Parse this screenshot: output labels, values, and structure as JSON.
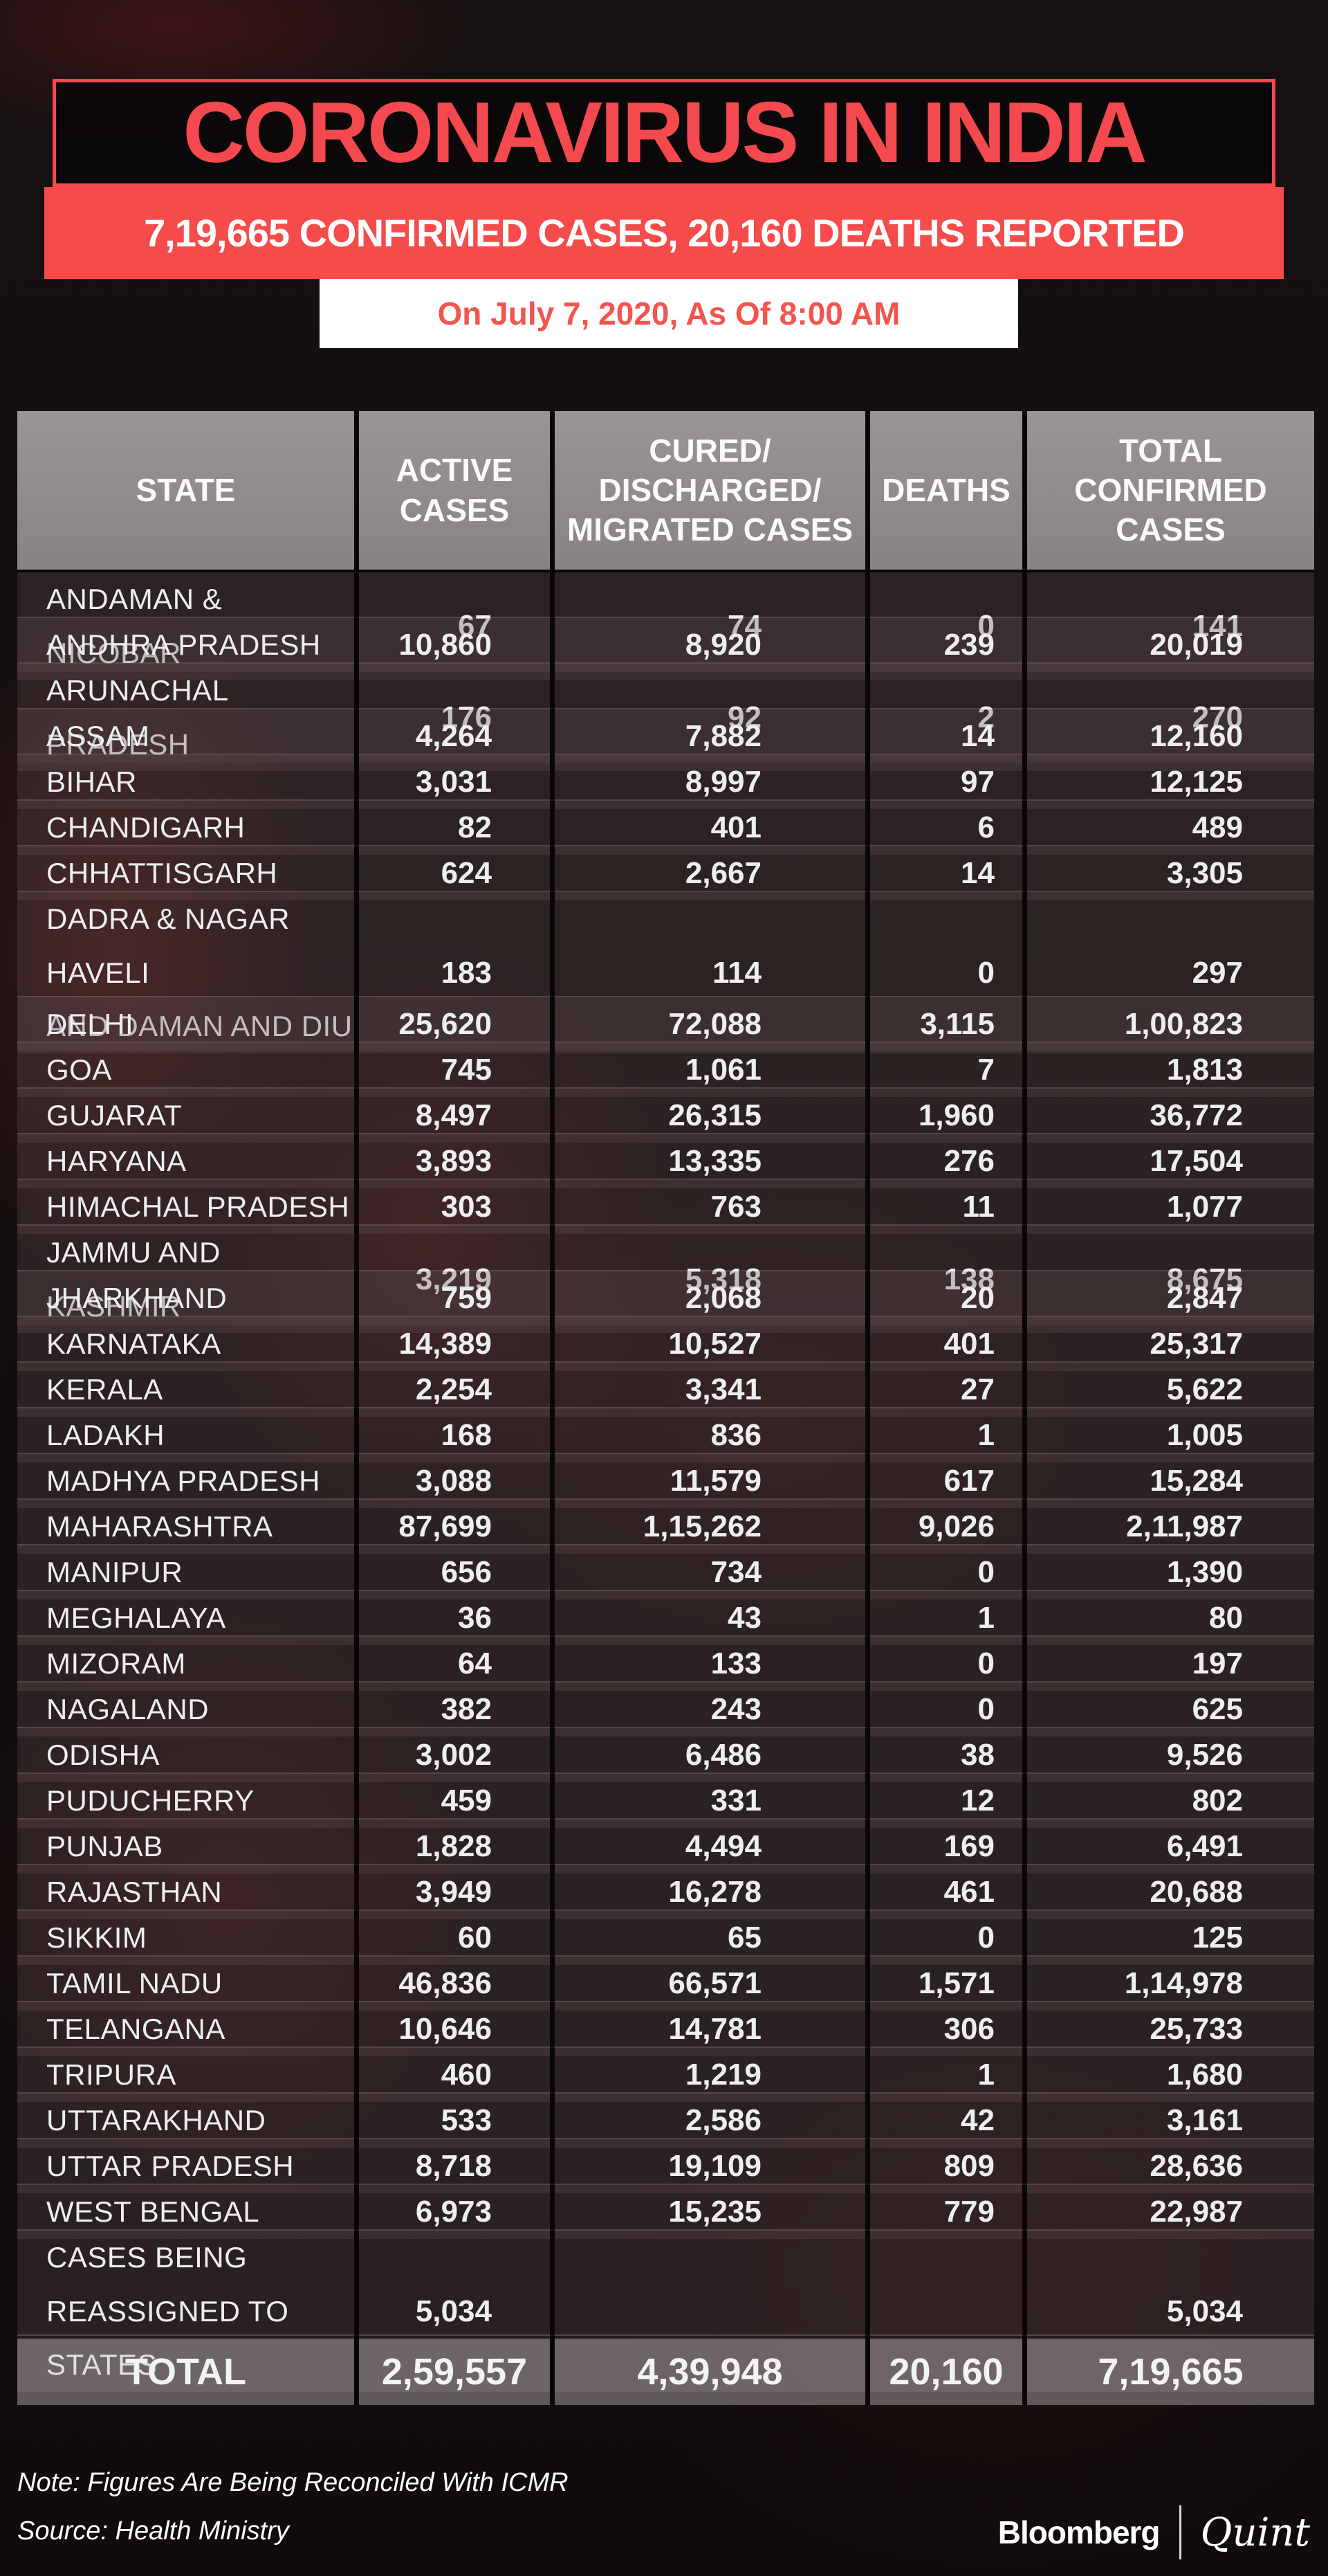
{
  "title": "CORONAVIRUS IN INDIA",
  "subtitle": "7,19,665 CONFIRMED CASES, 20,160 DEATHS REPORTED",
  "date_line": "On July 7, 2020, As Of 8:00 AM",
  "table": {
    "headers": [
      "STATE",
      "ACTIVE\nCASES",
      "CURED/\nDISCHARGED/\nMIGRATED CASES",
      "DEATHS",
      "TOTAL\nCONFIRMED\nCASES"
    ]
  },
  "chart_data": {
    "type": "table",
    "title": "CORONAVIRUS IN INDIA",
    "subtitle": "7,19,665 CONFIRMED CASES, 20,160 DEATHS REPORTED",
    "as_of": "On July 7, 2020, As Of 8:00 AM",
    "columns": [
      "STATE",
      "ACTIVE CASES",
      "CURED/DISCHARGED/MIGRATED CASES",
      "DEATHS",
      "TOTAL CONFIRMED CASES"
    ],
    "rows": [
      [
        "ANDAMAN & NICOBAR",
        "67",
        "74",
        "0",
        "141"
      ],
      [
        "ANDHRA PRADESH",
        "10,860",
        "8,920",
        "239",
        "20,019"
      ],
      [
        "ARUNACHAL PRADESH",
        "176",
        "92",
        "2",
        "270"
      ],
      [
        "ASSAM",
        "4,264",
        "7,882",
        "14",
        "12,160"
      ],
      [
        "BIHAR",
        "3,031",
        "8,997",
        "97",
        "12,125"
      ],
      [
        "CHANDIGARH",
        "82",
        "401",
        "6",
        "489"
      ],
      [
        "CHHATTISGARH",
        "624",
        "2,667",
        "14",
        "3,305"
      ],
      [
        "DADRA & NAGAR HAVELI\nAND DAMAN AND DIU",
        "183",
        "114",
        "0",
        "297"
      ],
      [
        "DELHI",
        "25,620",
        "72,088",
        "3,115",
        "1,00,823"
      ],
      [
        "GOA",
        "745",
        "1,061",
        "7",
        "1,813"
      ],
      [
        "GUJARAT",
        "8,497",
        "26,315",
        "1,960",
        "36,772"
      ],
      [
        "HARYANA",
        "3,893",
        "13,335",
        "276",
        "17,504"
      ],
      [
        "HIMACHAL PRADESH",
        "303",
        "763",
        "11",
        "1,077"
      ],
      [
        "JAMMU AND KASHMIR",
        "3,219",
        "5,318",
        "138",
        "8,675"
      ],
      [
        "JHARKHAND",
        "759",
        "2,068",
        "20",
        "2,847"
      ],
      [
        "KARNATAKA",
        "14,389",
        "10,527",
        "401",
        "25,317"
      ],
      [
        "KERALA",
        "2,254",
        "3,341",
        "27",
        "5,622"
      ],
      [
        "LADAKH",
        "168",
        "836",
        "1",
        "1,005"
      ],
      [
        "MADHYA PRADESH",
        "3,088",
        "11,579",
        "617",
        "15,284"
      ],
      [
        "MAHARASHTRA",
        "87,699",
        "1,15,262",
        "9,026",
        "2,11,987"
      ],
      [
        "MANIPUR",
        "656",
        "734",
        "0",
        "1,390"
      ],
      [
        "MEGHALAYA",
        "36",
        "43",
        "1",
        "80"
      ],
      [
        "MIZORAM",
        "64",
        "133",
        "0",
        "197"
      ],
      [
        "NAGALAND",
        "382",
        "243",
        "0",
        "625"
      ],
      [
        "ODISHA",
        "3,002",
        "6,486",
        "38",
        "9,526"
      ],
      [
        "PUDUCHERRY",
        "459",
        "331",
        "12",
        "802"
      ],
      [
        "PUNJAB",
        "1,828",
        "4,494",
        "169",
        "6,491"
      ],
      [
        "RAJASTHAN",
        "3,949",
        "16,278",
        "461",
        "20,688"
      ],
      [
        "SIKKIM",
        "60",
        "65",
        "0",
        "125"
      ],
      [
        "TAMIL NADU",
        "46,836",
        "66,571",
        "1,571",
        "1,14,978"
      ],
      [
        "TELANGANA",
        "10,646",
        "14,781",
        "306",
        "25,733"
      ],
      [
        "TRIPURA",
        "460",
        "1,219",
        "1",
        "1,680"
      ],
      [
        "UTTARAKHAND",
        "533",
        "2,586",
        "42",
        "3,161"
      ],
      [
        "UTTAR PRADESH",
        "8,718",
        "19,109",
        "809",
        "28,636"
      ],
      [
        "WEST BENGAL",
        "6,973",
        "15,235",
        "779",
        "22,987"
      ],
      [
        "CASES BEING\nREASSIGNED TO STATES",
        "5,034",
        "",
        "",
        "5,034"
      ]
    ],
    "total": [
      "TOTAL",
      "2,59,557",
      "4,39,948",
      "20,160",
      "7,19,665"
    ]
  },
  "footer": {
    "note": "Note: Figures Are Being Reconciled With ICMR",
    "source": "Source: Health Ministry",
    "brand_left": "Bloomberg",
    "brand_right": "Quint"
  },
  "colors": {
    "accent_red": "#f4494e",
    "banner_red": "#f54c4b",
    "date_text_red": "#f4544e",
    "header_gray": "#8f8b8c",
    "text_white": "#ffffff"
  }
}
